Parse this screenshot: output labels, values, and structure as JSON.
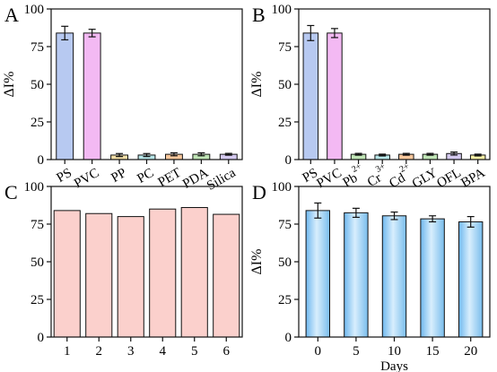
{
  "chart_data": [
    {
      "panel": "A",
      "type": "bar",
      "categories": [
        "PS",
        "PVC",
        "PP",
        "PC",
        "PET",
        "PDA",
        "Silica"
      ],
      "values": [
        84,
        84,
        3,
        3,
        3.5,
        3.5,
        3.5
      ],
      "errors": [
        4.5,
        2.5,
        1,
        1,
        1,
        1,
        0.6
      ],
      "colors": [
        "#b7c9f1",
        "#f3b9f3",
        "#f3dfa7",
        "#b7e6e8",
        "#f8c79c",
        "#bfe4b5",
        "#d4c9ef"
      ],
      "ylabel": "ΔI%",
      "xlabel": "",
      "ylim": [
        0,
        100
      ],
      "yticks": [
        0,
        25,
        50,
        75,
        100
      ],
      "rotate_xticks": true
    },
    {
      "panel": "B",
      "type": "bar",
      "categories": [
        "PS",
        "PVC",
        "Pb2+",
        "Cr3+",
        "Cd2+",
        "GLY",
        "OFL",
        "BPA"
      ],
      "category_labels": [
        {
          "base": "PS",
          "sup": ""
        },
        {
          "base": "PVC",
          "sup": ""
        },
        {
          "base": "Pb",
          "sup": "2+"
        },
        {
          "base": "Cr",
          "sup": "3+"
        },
        {
          "base": "Cd",
          "sup": "2+"
        },
        {
          "base": "GLY",
          "sup": ""
        },
        {
          "base": "OFL",
          "sup": ""
        },
        {
          "base": "BPA",
          "sup": ""
        }
      ],
      "values": [
        84,
        84,
        3.5,
        3,
        3.5,
        3.5,
        4,
        3
      ],
      "errors": [
        5,
        3,
        0.6,
        0.6,
        0.6,
        0.6,
        1,
        0.6
      ],
      "colors": [
        "#b7c9f1",
        "#f3b9f3",
        "#bfe4b5",
        "#b7e6e8",
        "#f8c79c",
        "#bfe4b5",
        "#d4c9ef",
        "#f6efa6"
      ],
      "ylabel": "ΔI%",
      "xlabel": "",
      "ylim": [
        0,
        100
      ],
      "yticks": [
        0,
        25,
        50,
        75,
        100
      ],
      "rotate_xticks": true
    },
    {
      "panel": "C",
      "type": "bar",
      "categories": [
        "1",
        "2",
        "3",
        "4",
        "5",
        "6"
      ],
      "values": [
        84,
        82,
        80,
        85,
        86,
        81.5
      ],
      "errors": [],
      "colors": [
        "#fbd0cc"
      ],
      "ylabel": "",
      "xlabel": "",
      "ylim": [
        0,
        100
      ],
      "yticks": [
        0,
        25,
        50,
        75,
        100
      ],
      "rotate_xticks": false
    },
    {
      "panel": "D",
      "type": "bar",
      "categories": [
        "0",
        "5",
        "10",
        "15",
        "20"
      ],
      "values": [
        84,
        82.5,
        80.5,
        78.5,
        76.5
      ],
      "errors": [
        5,
        3,
        2.5,
        2,
        3.5
      ],
      "colors": [
        "#a8d6f5"
      ],
      "gradient": true,
      "ylabel": "ΔI%",
      "xlabel": "Days",
      "ylim": [
        0,
        100
      ],
      "yticks": [
        0,
        25,
        50,
        75,
        100
      ],
      "rotate_xticks": false
    }
  ]
}
